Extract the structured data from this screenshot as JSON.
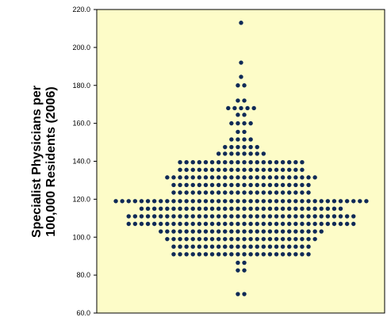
{
  "chart_data": {
    "type": "scatter",
    "subtype": "dot-strip (beeswarm)",
    "title": "",
    "xlabel": "",
    "ylabel": "Specialist Physicians per 100,000 Residents (2006)",
    "ylabel_lines": [
      "Specialist Physicians per",
      "100,000 Residents (2006)"
    ],
    "ylim": [
      60,
      220
    ],
    "yticks": [
      60,
      80,
      100,
      120,
      140,
      160,
      180,
      200,
      220
    ],
    "ytick_labels": [
      "60.0",
      "80.0",
      "100.0",
      "120.0",
      "140.0",
      "160.0",
      "180.0",
      "200.0",
      "220.0"
    ],
    "grid": false,
    "legend": "none",
    "colors": {
      "plot_background": "#fdfcc8",
      "dots": "#0f2a57",
      "axis": "#000000"
    },
    "dot_rows": [
      {
        "y": 213.0,
        "count": 1
      },
      {
        "y": 192.0,
        "count": 1
      },
      {
        "y": 184.5,
        "count": 1
      },
      {
        "y": 180.0,
        "count": 2
      },
      {
        "y": 172.0,
        "count": 2
      },
      {
        "y": 168.0,
        "count": 5
      },
      {
        "y": 164.5,
        "count": 2
      },
      {
        "y": 160.0,
        "count": 4
      },
      {
        "y": 155.5,
        "count": 2
      },
      {
        "y": 151.5,
        "count": 4
      },
      {
        "y": 147.5,
        "count": 6
      },
      {
        "y": 144.0,
        "count": 8
      },
      {
        "y": 139.5,
        "count": 20
      },
      {
        "y": 135.5,
        "count": 20
      },
      {
        "y": 131.5,
        "count": 24
      },
      {
        "y": 127.5,
        "count": 22
      },
      {
        "y": 123.5,
        "count": 22
      },
      {
        "y": 119.0,
        "count": 40
      },
      {
        "y": 115.0,
        "count": 32
      },
      {
        "y": 111.0,
        "count": 36
      },
      {
        "y": 107.0,
        "count": 36
      },
      {
        "y": 103.0,
        "count": 26
      },
      {
        "y": 99.0,
        "count": 24
      },
      {
        "y": 95.0,
        "count": 22
      },
      {
        "y": 91.0,
        "count": 22
      },
      {
        "y": 86.5,
        "count": 2
      },
      {
        "y": 82.5,
        "count": 2
      },
      {
        "y": 70.0,
        "count": 2
      }
    ]
  }
}
